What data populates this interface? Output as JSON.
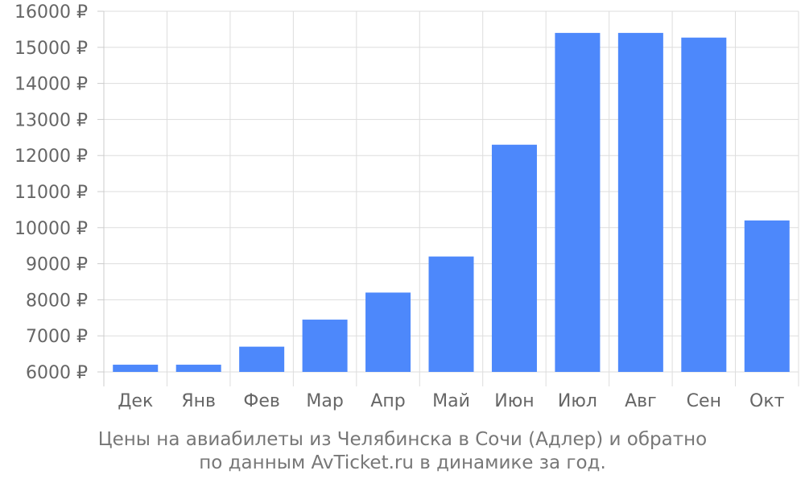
{
  "chart_data": {
    "type": "bar",
    "categories": [
      "Дек",
      "Янв",
      "Фев",
      "Мар",
      "Апр",
      "Май",
      "Июн",
      "Июл",
      "Авг",
      "Сен",
      "Окт"
    ],
    "values": [
      6200,
      6200,
      6700,
      7450,
      8200,
      9200,
      12300,
      15400,
      15400,
      15270,
      10200
    ],
    "y_ticks": [
      "6000 ₽",
      "7000 ₽",
      "8000 ₽",
      "9000 ₽",
      "10000 ₽",
      "11000 ₽",
      "12000 ₽",
      "13000 ₽",
      "14000 ₽",
      "15000 ₽",
      "16000 ₽"
    ],
    "ylim": [
      6000,
      16000
    ],
    "grid": true,
    "bar_color": "#4d88fb",
    "title": "",
    "xlabel": "",
    "ylabel": ""
  },
  "caption": {
    "line1": "Цены на авиабилеты из Челябинска в Сочи (Адлер) и обратно",
    "line2": "по данным AvTicket.ru в динамике за год."
  }
}
